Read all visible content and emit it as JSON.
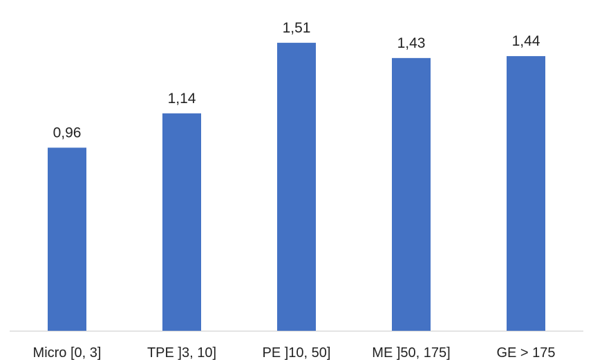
{
  "chart_data": {
    "type": "bar",
    "title": "",
    "xlabel": "",
    "ylabel": "",
    "categories": [
      "Micro [0, 3]",
      "TPE ]3, 10]",
      "PE ]10, 50]",
      "ME ]50, 175]",
      "GE > 175"
    ],
    "values": [
      0.96,
      1.14,
      1.51,
      1.43,
      1.44
    ],
    "value_labels": [
      "0,96",
      "1,14",
      "1,51",
      "1,43",
      "1,44"
    ],
    "ylim": [
      0,
      1.6
    ],
    "grid": false,
    "legend": "none",
    "colors": {
      "bar": "#4472C4",
      "axis": "#D9D9D9",
      "text": "#222222"
    }
  }
}
